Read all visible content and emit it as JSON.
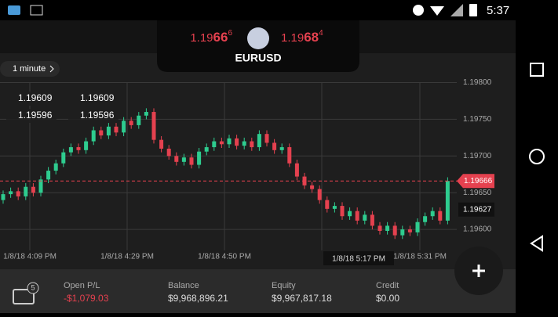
{
  "status": {
    "time": "5:37"
  },
  "quote": {
    "symbol": "EURUSD",
    "bid": {
      "base": "1.19",
      "big": "66",
      "pip": "6"
    },
    "ask": {
      "base": "1.19",
      "big": "68",
      "pip": "4"
    }
  },
  "timeframe": "1 minute",
  "price_axis": {
    "range": [
      1.1955,
      1.1984
    ],
    "ticks": [
      {
        "value": 1.198,
        "label": "1.19800"
      },
      {
        "value": 1.1975,
        "label": "1.19750"
      },
      {
        "value": 1.197,
        "label": "1.19700"
      },
      {
        "value": 1.1965,
        "label": "1.19650"
      },
      {
        "value": 1.196,
        "label": "1.19600"
      }
    ],
    "current": {
      "value": 1.19666,
      "label": "1.19666"
    },
    "marker": {
      "value": 1.19627,
      "label": "1.19627"
    }
  },
  "time_axis": {
    "labels": [
      "1/8/18 4:09 PM",
      "1/8/18 4:29 PM",
      "1/8/18 4:50 PM",
      "1/8/18 5:17 PM",
      "1/8/18 5:31 PM"
    ]
  },
  "crosshair": {
    "values": [
      "1.19609",
      "1.19609",
      "1.19596",
      "1.19596"
    ]
  },
  "candles": {
    "open": [
      1.1964,
      1.19648,
      1.19652,
      1.19645,
      1.19658,
      1.1965,
      1.19668,
      1.1968,
      1.1969,
      1.19705,
      1.19712,
      1.19708,
      1.1972,
      1.19735,
      1.19728,
      1.1974,
      1.19732,
      1.19748,
      1.19742,
      1.19755,
      1.1976,
      1.19722,
      1.1971,
      1.197,
      1.19692,
      1.19698,
      1.19688,
      1.19706,
      1.19712,
      1.1972,
      1.19716,
      1.19724,
      1.19714,
      1.1972,
      1.19712,
      1.1973,
      1.19718,
      1.19708,
      1.19712,
      1.1969,
      1.19672,
      1.1966,
      1.19655,
      1.1964,
      1.19628,
      1.19632,
      1.19618,
      1.19625,
      1.19612,
      1.1962,
      1.19605,
      1.19598,
      1.19605,
      1.19592,
      1.196,
      1.19596,
      1.1961,
      1.19618,
      1.19625,
      1.19612
    ],
    "high": [
      1.19653,
      1.19657,
      1.19657,
      1.19663,
      1.19663,
      1.19673,
      1.19685,
      1.19695,
      1.1971,
      1.19717,
      1.19717,
      1.19725,
      1.1974,
      1.1974,
      1.19745,
      1.19745,
      1.19753,
      1.19753,
      1.1976,
      1.19765,
      1.19765,
      1.19727,
      1.19715,
      1.19705,
      1.19703,
      1.19703,
      1.19711,
      1.19717,
      1.19725,
      1.19725,
      1.19729,
      1.19729,
      1.19725,
      1.19725,
      1.19735,
      1.19735,
      1.19723,
      1.19717,
      1.19717,
      1.19695,
      1.19677,
      1.19665,
      1.1966,
      1.19645,
      1.19637,
      1.19637,
      1.1963,
      1.1963,
      1.19625,
      1.19625,
      1.1961,
      1.1961,
      1.1961,
      1.19605,
      1.19605,
      1.19615,
      1.19623,
      1.1963,
      1.1963,
      1.19671
    ],
    "low": [
      1.19635,
      1.19643,
      1.1964,
      1.1964,
      1.19645,
      1.19645,
      1.19663,
      1.19675,
      1.19685,
      1.197,
      1.19703,
      1.19703,
      1.19715,
      1.19723,
      1.19723,
      1.19727,
      1.19727,
      1.19737,
      1.19737,
      1.1975,
      1.19717,
      1.19705,
      1.19695,
      1.19687,
      1.19687,
      1.19683,
      1.19683,
      1.19701,
      1.19707,
      1.19711,
      1.19711,
      1.19709,
      1.19709,
      1.19707,
      1.19707,
      1.19713,
      1.19703,
      1.19703,
      1.19685,
      1.19667,
      1.19655,
      1.1965,
      1.19635,
      1.19623,
      1.19623,
      1.19613,
      1.19613,
      1.19607,
      1.19607,
      1.196,
      1.19593,
      1.19593,
      1.19587,
      1.19587,
      1.19591,
      1.19591,
      1.19605,
      1.19613,
      1.19607,
      1.19607
    ],
    "close": [
      1.19648,
      1.19652,
      1.19645,
      1.19658,
      1.1965,
      1.19668,
      1.1968,
      1.1969,
      1.19705,
      1.19712,
      1.19708,
      1.1972,
      1.19735,
      1.19728,
      1.1974,
      1.19732,
      1.19748,
      1.19742,
      1.19755,
      1.1976,
      1.19722,
      1.1971,
      1.197,
      1.19692,
      1.19698,
      1.19688,
      1.19706,
      1.19712,
      1.1972,
      1.19716,
      1.19724,
      1.19714,
      1.1972,
      1.19712,
      1.1973,
      1.19718,
      1.19708,
      1.19712,
      1.1969,
      1.19672,
      1.1966,
      1.19655,
      1.1964,
      1.19628,
      1.19632,
      1.19618,
      1.19625,
      1.19612,
      1.1962,
      1.19605,
      1.19598,
      1.19605,
      1.19592,
      1.196,
      1.19596,
      1.1961,
      1.19618,
      1.19625,
      1.19612,
      1.19666
    ],
    "up_color": "#2ecc8f",
    "down_color": "#e5414f"
  },
  "account": {
    "badge": "5",
    "fields": [
      {
        "label": "Open P/L",
        "value": "-$1,079.03"
      },
      {
        "label": "Balance",
        "value": "$9,968,896.21"
      },
      {
        "label": "Equity",
        "value": "$9,967,817.18"
      },
      {
        "label": "Credit",
        "value": "$0.00"
      }
    ]
  }
}
